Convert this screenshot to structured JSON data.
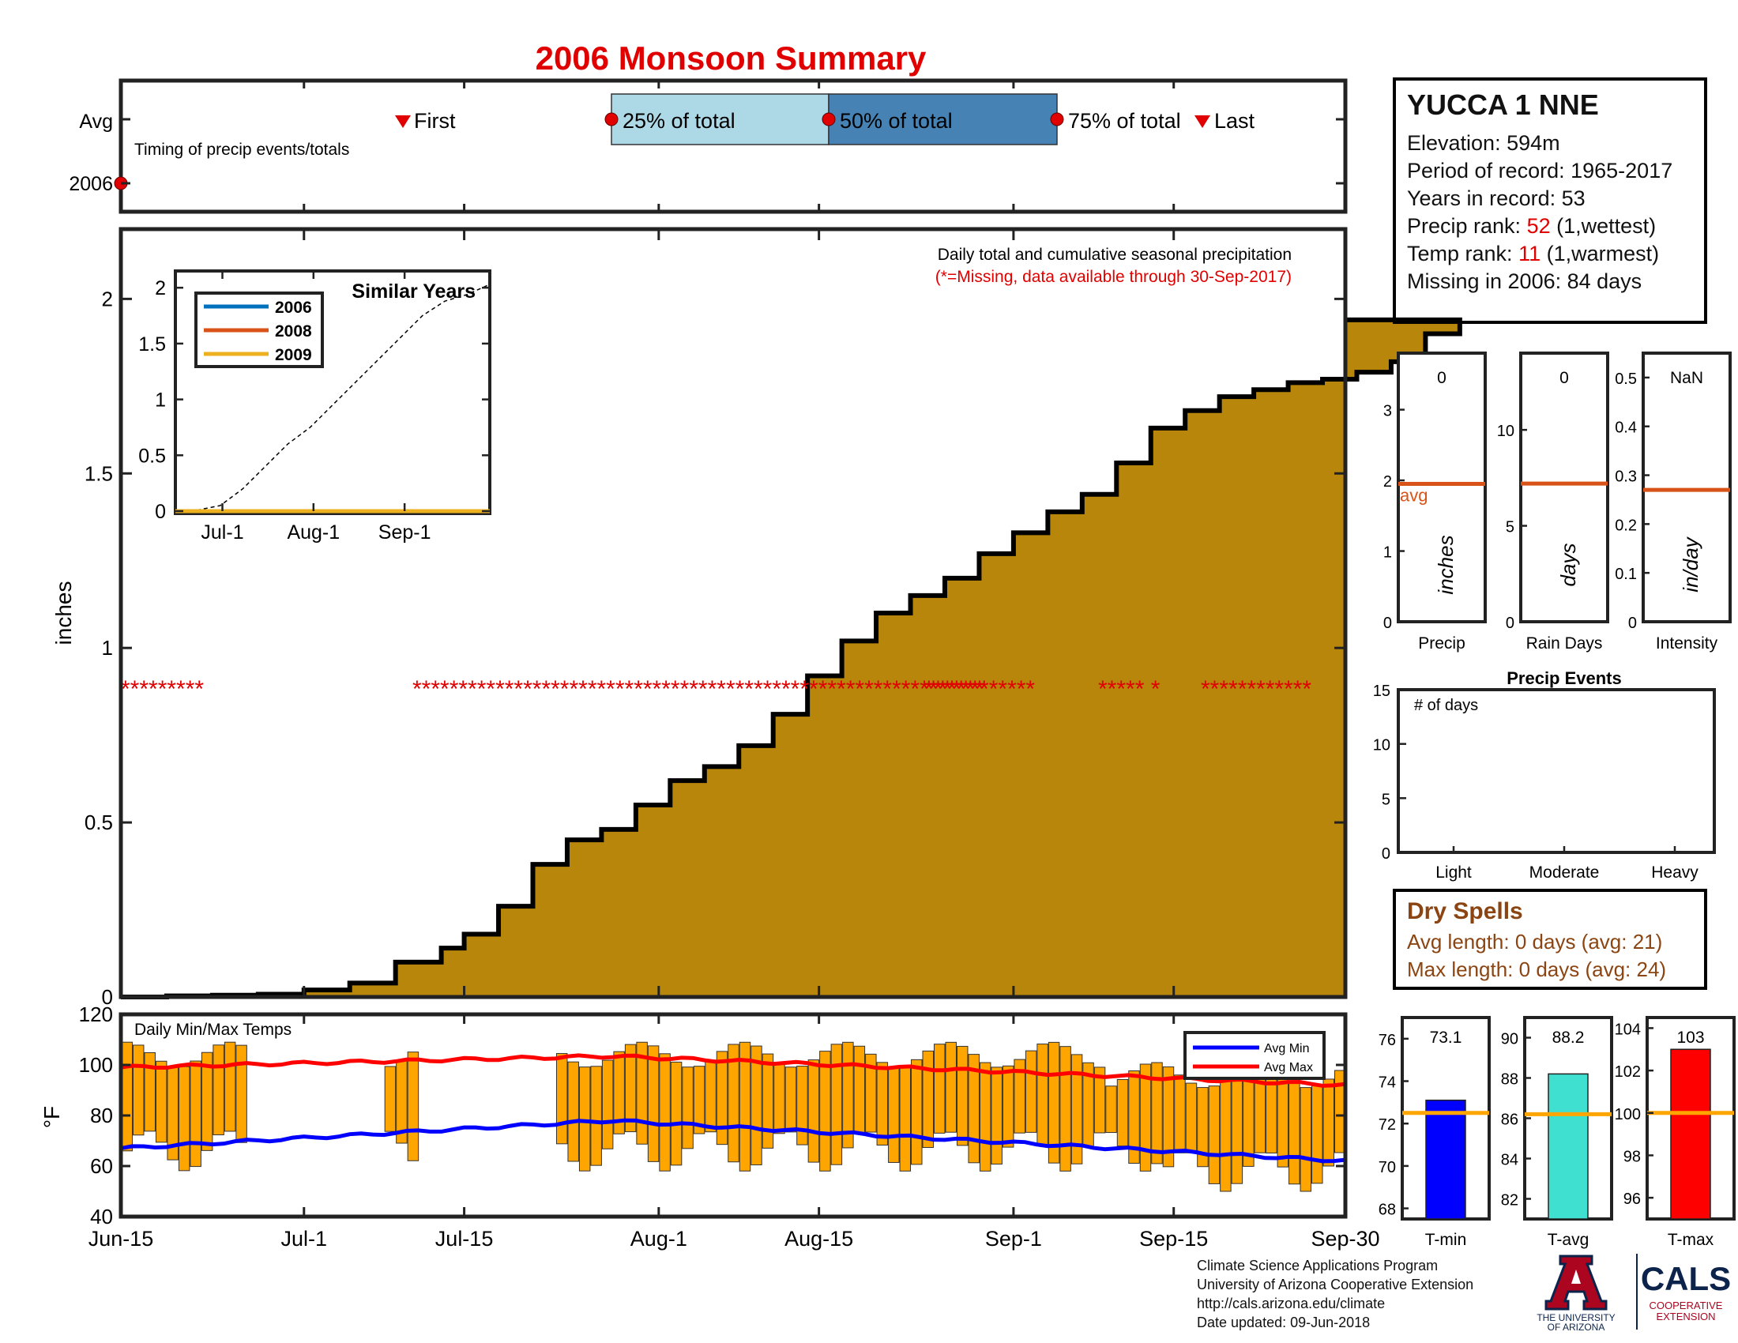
{
  "chart_data": {
    "type": "area",
    "title": "2006 Monsoon Summary",
    "main": {
      "title": "Daily total and cumulative seasonal precipitation",
      "note": "(*=Missing, data available through 30-Sep-2017)",
      "ylabel": "inches",
      "ylim": [
        0,
        2.2
      ],
      "yticks": [
        "0",
        "0.5",
        "1",
        "1.5",
        "2"
      ],
      "xticks": [
        "Jun-15",
        "Jul-1",
        "Jul-15",
        "Aug-1",
        "Aug-15",
        "Sep-1",
        "Sep-15",
        "Sep-30"
      ],
      "x_days": [
        0,
        4,
        8,
        12,
        16,
        20,
        24,
        28,
        30,
        33,
        36,
        39,
        42,
        45,
        48,
        51,
        54,
        57,
        60,
        63,
        66,
        69,
        72,
        75,
        78,
        81,
        84,
        87,
        90,
        93,
        96,
        99,
        102,
        105,
        108,
        111,
        114,
        117
      ],
      "cumulative": [
        0.0,
        0.003,
        0.005,
        0.008,
        0.02,
        0.04,
        0.1,
        0.14,
        0.18,
        0.26,
        0.38,
        0.45,
        0.48,
        0.55,
        0.62,
        0.66,
        0.72,
        0.81,
        0.92,
        1.02,
        1.1,
        1.15,
        1.2,
        1.27,
        1.33,
        1.39,
        1.44,
        1.53,
        1.63,
        1.68,
        1.72,
        1.74,
        1.76,
        1.77,
        1.79,
        1.82,
        1.9,
        1.94
      ],
      "missing_days_text": [
        "*********",
        "**************************************************************",
        "************",
        "***** *",
        "************"
      ]
    },
    "timing": {
      "title": "Timing of precip events/totals",
      "rows": [
        "Avg",
        "2006"
      ],
      "labels": {
        "first": "First",
        "p25": "25% of total",
        "p50": "50% of total",
        "p75": "75% of total",
        "last": "Last"
      },
      "avg_days": {
        "first": 24,
        "p25": 43,
        "p50": 62,
        "p75": 81,
        "last": 94
      }
    },
    "similar_years": {
      "title": "Similar Years",
      "series": [
        "2006",
        "2008",
        "2009"
      ],
      "colors": [
        "#0072bd",
        "#d95319",
        "#edb120"
      ],
      "yticks": [
        "0",
        "0.5",
        "1",
        "1.5",
        "2"
      ],
      "xticks": [
        "Jul-1",
        "Aug-1",
        "Sep-1"
      ],
      "avg_cumulative": [
        0,
        0.01,
        0.05,
        0.2,
        0.4,
        0.6,
        0.75,
        0.95,
        1.15,
        1.35,
        1.55,
        1.75,
        1.88,
        1.94,
        2.03
      ]
    },
    "small_panels": [
      {
        "label": "Precip",
        "unit": "inches",
        "value": "0",
        "avg": 1.95,
        "ymax": 3.8,
        "yticks": [
          "0",
          "1",
          "2",
          "3"
        ],
        "avg_label": "avg"
      },
      {
        "label": "Rain Days",
        "unit": "days",
        "value": "0",
        "avg": 7.2,
        "ymax": 14,
        "yticks": [
          "0",
          "5",
          "10"
        ]
      },
      {
        "label": "Intensity",
        "unit": "in/day",
        "value": "NaN",
        "avg": 0.27,
        "ymax": 0.55,
        "yticks": [
          "0",
          "0.1",
          "0.2",
          "0.3",
          "0.4",
          "0.5"
        ]
      }
    ],
    "precip_events": {
      "title": "Precip Events",
      "ylabel": "# of days",
      "yticks": [
        "0",
        "5",
        "10",
        "15"
      ],
      "categories": [
        "Light",
        "Moderate",
        "Heavy"
      ],
      "values": [
        0,
        0,
        0
      ]
    },
    "temps": {
      "title": "Daily Min/Max Temps",
      "ylabel": "°F",
      "ylim": [
        40,
        120
      ],
      "yticks": [
        "40",
        "60",
        "80",
        "100",
        "120"
      ],
      "legend": [
        "Avg Min",
        "Avg Max"
      ],
      "avg_min_start": 67,
      "avg_min_peak": 78,
      "avg_min_end": 62,
      "avg_max_start": 99,
      "avg_max_peak": 103.5,
      "avg_max_end": 92
    },
    "temp_bars": [
      {
        "label": "T-min",
        "value": "73.1",
        "avg": 72.5,
        "ymin": 67.5,
        "ymax": 77,
        "yticks": [
          "68",
          "70",
          "72",
          "74",
          "76"
        ],
        "color": "#0000ff"
      },
      {
        "label": "T-avg",
        "value": "88.2",
        "avg": 86.2,
        "ymin": 81,
        "ymax": 91,
        "yticks": [
          "82",
          "84",
          "86",
          "88",
          "90"
        ],
        "color": "#40e0d0"
      },
      {
        "label": "T-max",
        "value": "103",
        "avg": 100,
        "ymin": 95,
        "ymax": 104.5,
        "yticks": [
          "96",
          "98",
          "100",
          "102",
          "104"
        ],
        "color": "#ff0000"
      }
    ]
  },
  "station": {
    "name": "YUCCA 1 NNE",
    "elevation": "Elevation: 594m",
    "period": "Period of record: 1965-2017",
    "years": "Years in record: 53",
    "precip_rank_label": "Precip rank: ",
    "precip_rank_value": "52",
    "precip_rank_note": " (1,wettest)",
    "temp_rank_label": "Temp rank: ",
    "temp_rank_value": "11",
    "temp_rank_note": " (1,warmest)",
    "missing": "Missing in 2006: 84 days"
  },
  "dry_spells": {
    "title": "Dry Spells",
    "avg_length": "Avg length: 0 days (avg: 21)",
    "max_length": "Max length: 0 days (avg: 24)"
  },
  "credits": {
    "line1": "Climate Science Applications Program",
    "line2": "University of Arizona Cooperative Extension",
    "line3": "http://cals.arizona.edu/climate",
    "line4": "Date updated: 09-Jun-2018"
  },
  "logos": {
    "ua_line1": "THE UNIVERSITY",
    "ua_line2": "OF ARIZONA",
    "cals": "CALS",
    "cals_line1": "COOPERATIVE",
    "cals_line2": "EXTENSION"
  }
}
